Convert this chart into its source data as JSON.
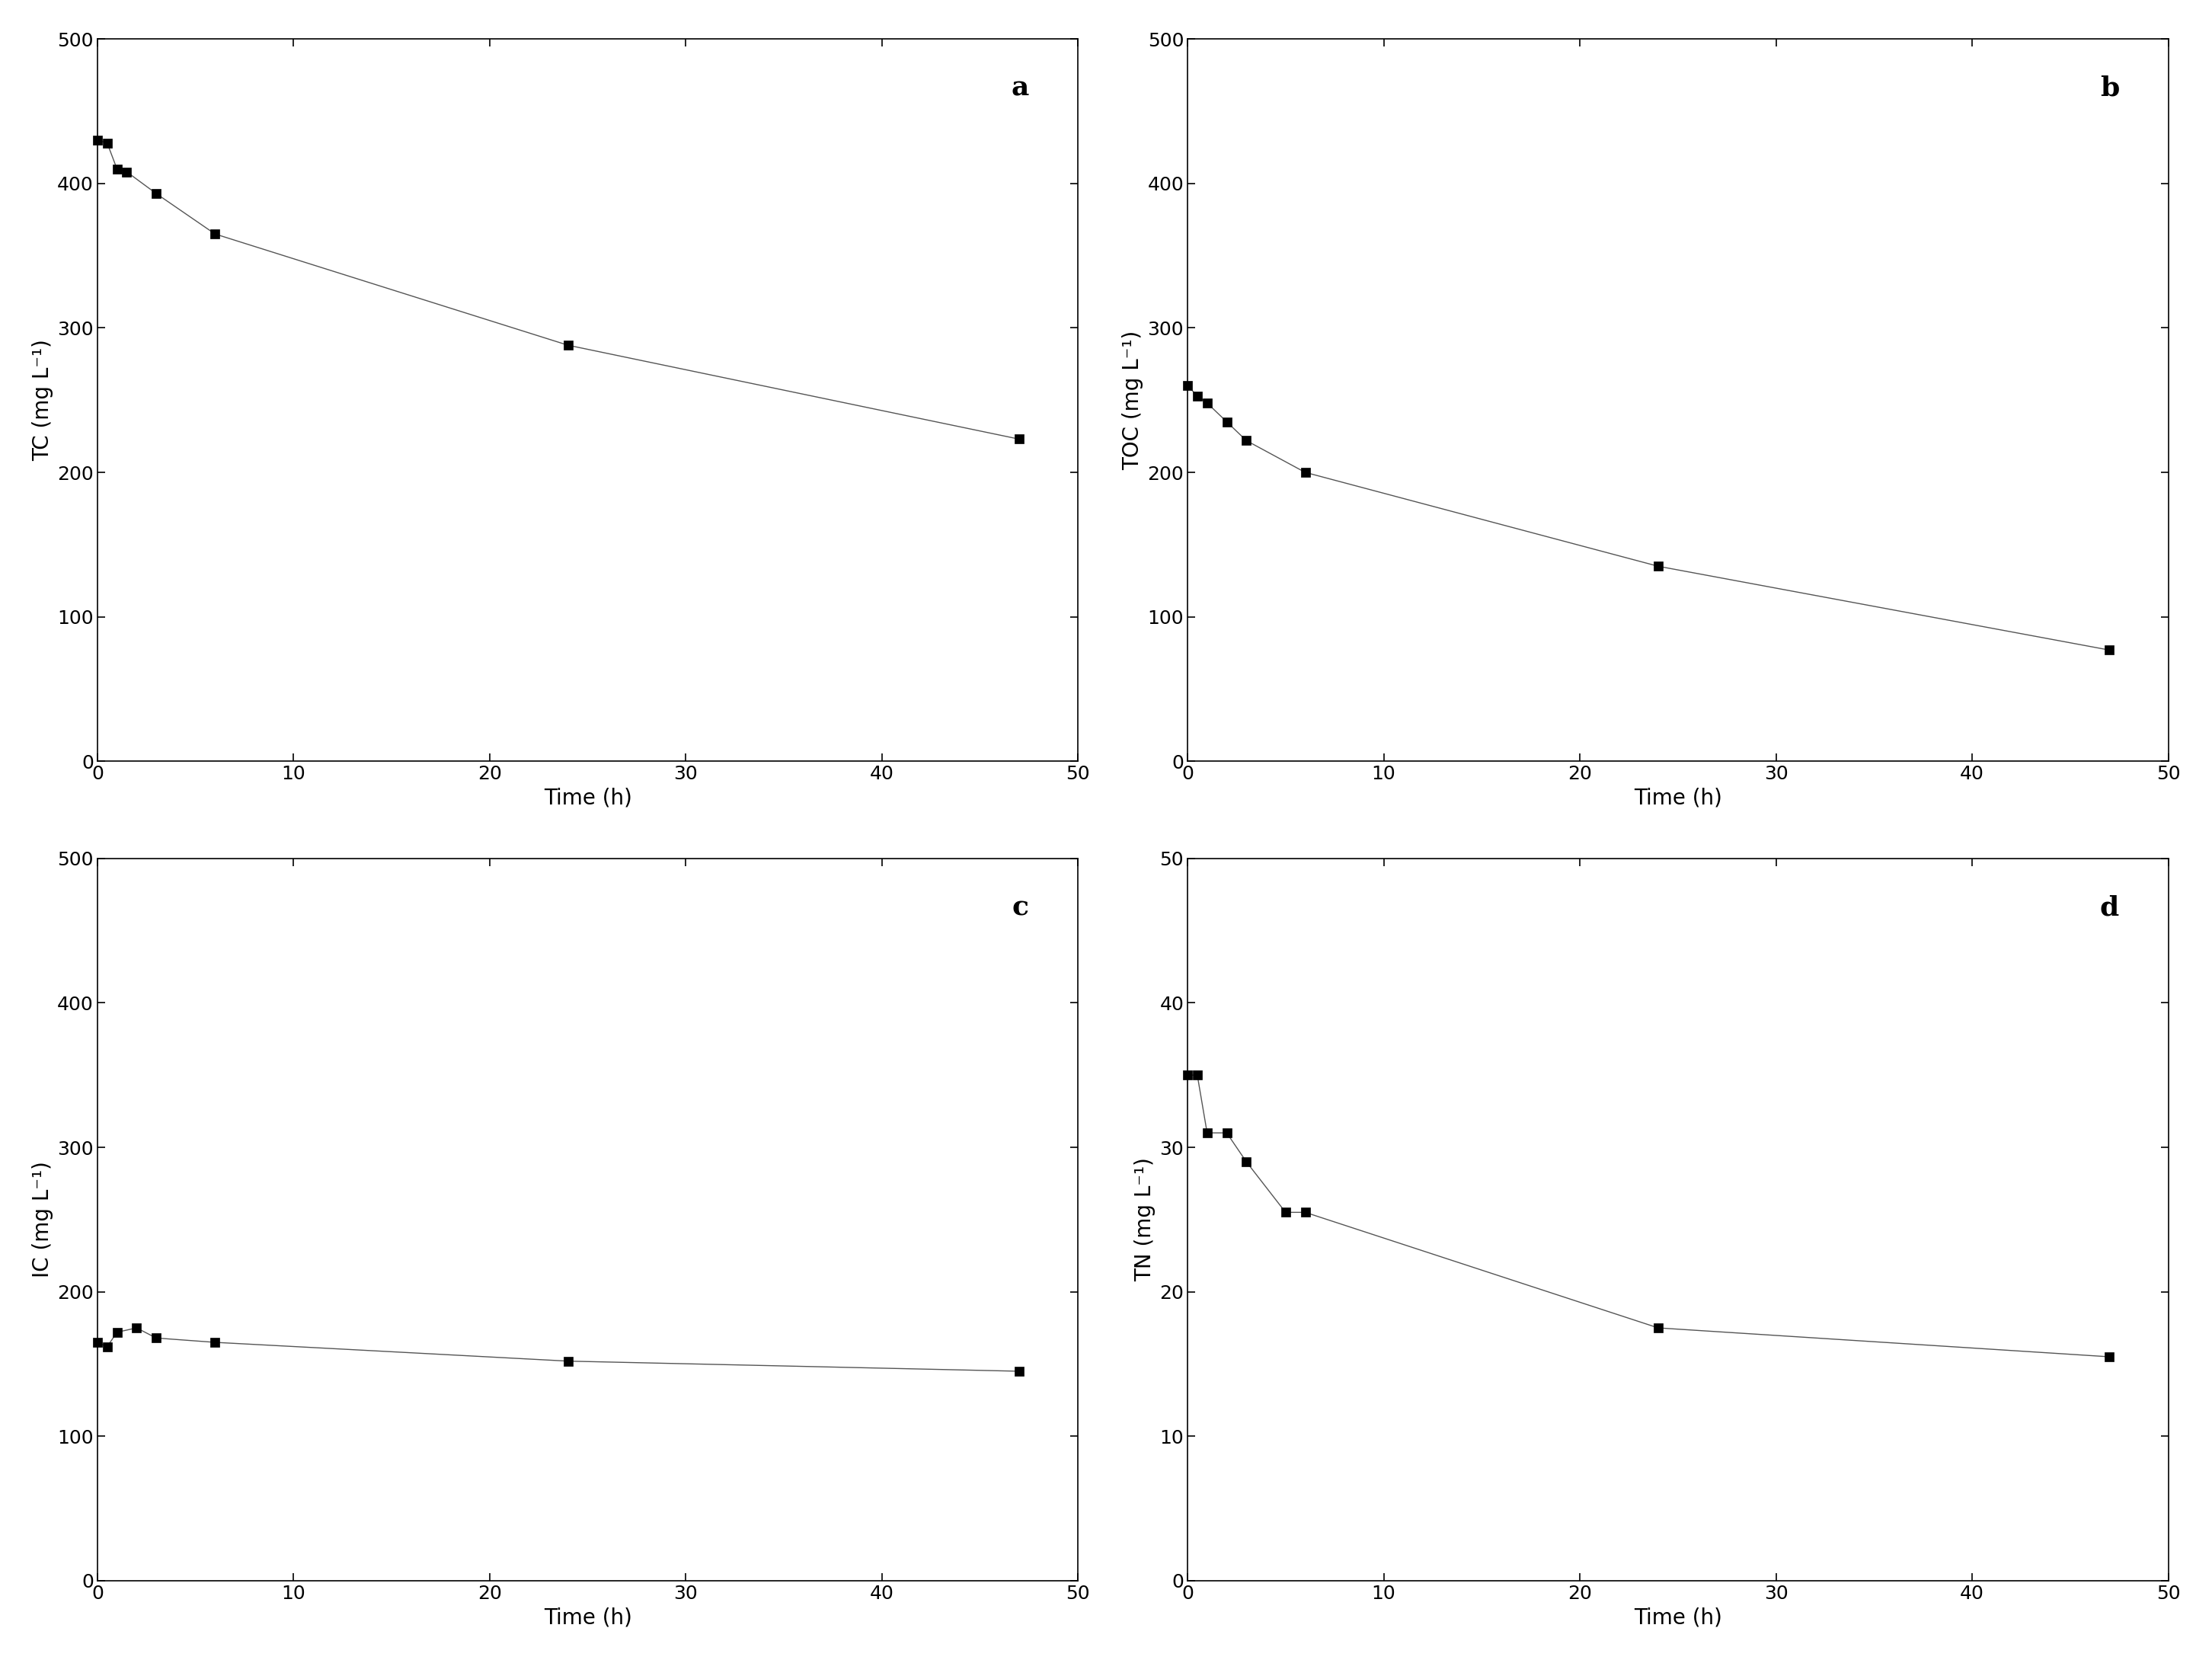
{
  "panels": [
    {
      "label": "a",
      "ylabel": "TC (mg L⁻¹)",
      "ylim": [
        0,
        500
      ],
      "yticks": [
        0,
        100,
        200,
        300,
        400,
        500
      ],
      "x": [
        0.0,
        0.5,
        1.0,
        1.5,
        3.0,
        6.0,
        24.0,
        47.0
      ],
      "y": [
        430,
        428,
        410,
        408,
        393,
        365,
        288,
        223
      ]
    },
    {
      "label": "b",
      "ylabel": "TOC (mg L⁻¹)",
      "ylim": [
        0,
        500
      ],
      "yticks": [
        0,
        100,
        200,
        300,
        400,
        500
      ],
      "x": [
        0.0,
        0.5,
        1.0,
        2.0,
        3.0,
        6.0,
        24.0,
        47.0
      ],
      "y": [
        260,
        253,
        248,
        235,
        222,
        200,
        135,
        77
      ]
    },
    {
      "label": "c",
      "ylabel": "IC (mg L⁻¹)",
      "ylim": [
        0,
        500
      ],
      "yticks": [
        0,
        100,
        200,
        300,
        400,
        500
      ],
      "x": [
        0.0,
        0.5,
        1.0,
        2.0,
        3.0,
        6.0,
        24.0,
        47.0
      ],
      "y": [
        165,
        162,
        172,
        175,
        168,
        165,
        152,
        145
      ]
    },
    {
      "label": "d",
      "ylabel": "TN (mg L⁻¹)",
      "ylim": [
        0,
        50
      ],
      "yticks": [
        0,
        10,
        20,
        30,
        40,
        50
      ],
      "x": [
        0.0,
        0.5,
        1.0,
        2.0,
        3.0,
        5.0,
        6.0,
        24.0,
        47.0
      ],
      "y": [
        35.0,
        35.0,
        31.0,
        31.0,
        29.0,
        25.5,
        25.5,
        17.5,
        15.5
      ]
    }
  ],
  "xlabel": "Time (h)",
  "xlim": [
    -1,
    50
  ],
  "xlim_display": [
    0,
    50
  ],
  "xticks": [
    0,
    10,
    20,
    30,
    40,
    50
  ],
  "marker": "s",
  "marker_size": 9,
  "line_color": "#555555",
  "marker_color": "#000000",
  "label_fontsize": 20,
  "tick_fontsize": 18,
  "panel_label_fontsize": 26,
  "background_color": "#ffffff"
}
